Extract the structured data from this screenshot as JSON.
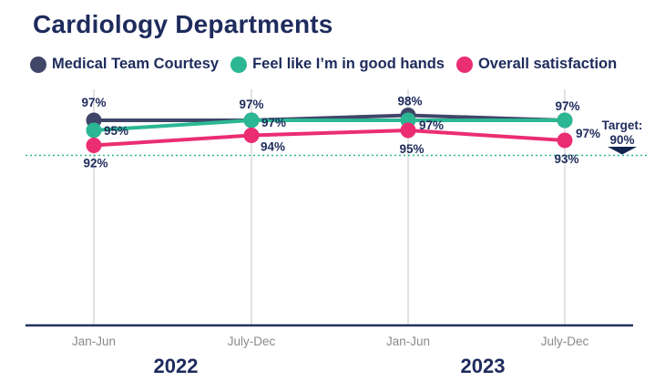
{
  "title": "Cardiology Departments",
  "colors": {
    "heading": "#1e2b5c",
    "axis_line": "#22315f",
    "grid_line": "#d6d6d6",
    "tick_text": "#8a8a8a",
    "target_arrow": "#12254f"
  },
  "chart_data": {
    "type": "line",
    "title": "Cardiology Departments",
    "categories": [
      "Jan-Jun",
      "July-Dec",
      "Jan-Jun",
      "July-Dec"
    ],
    "year_groups": [
      {
        "label": "2022",
        "categories": [
          0,
          1
        ]
      },
      {
        "label": "2023",
        "categories": [
          2,
          3
        ]
      }
    ],
    "series": [
      {
        "name": "Medical Team Courtesy",
        "color": "#3f4668",
        "values": [
          97,
          97,
          98,
          97
        ]
      },
      {
        "name": "Feel like I’m in good hands",
        "color": "#2bb793",
        "values": [
          95,
          97,
          97,
          97
        ]
      },
      {
        "name": "Overall satisfaction",
        "color": "#eb2d72",
        "values": [
          92,
          94,
          95,
          93
        ]
      }
    ],
    "unit": "%",
    "data_labels": [
      [
        "97%",
        "97%",
        "98%",
        "97%"
      ],
      [
        "95%",
        "97%",
        "97%",
        "97%"
      ],
      [
        "92%",
        "94%",
        "95%",
        "93%"
      ]
    ],
    "target": {
      "label": "Target:",
      "value_label": "90%",
      "value": 90
    },
    "ylim": [
      88,
      100
    ],
    "grid": "vertical",
    "legend_position": "top-left",
    "xlabel": "",
    "ylabel": ""
  }
}
